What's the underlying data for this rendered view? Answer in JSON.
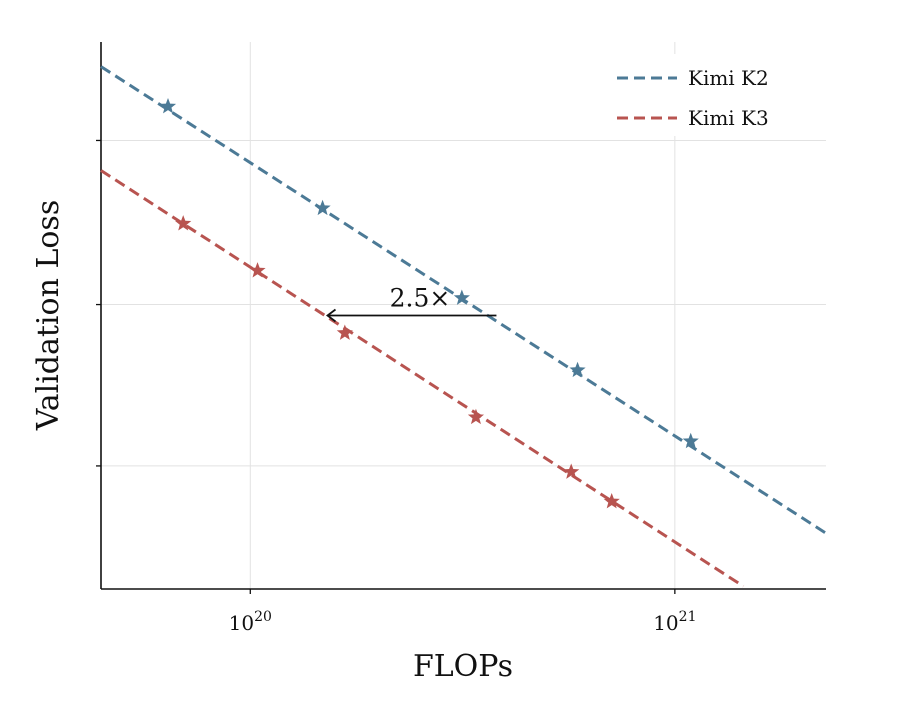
{
  "chart_data": {
    "type": "line",
    "title": "",
    "xlabel": "FLOPs",
    "ylabel": "Validation Loss",
    "x_scale": "log",
    "xlim": [
      4.45e+19,
      2.27e+21
    ],
    "ylim": [
      0,
      100
    ],
    "x_ticks": [
      {
        "value": 1e+20,
        "base": "10",
        "exp": "20"
      },
      {
        "value": 1e+21,
        "base": "10",
        "exp": "21"
      }
    ],
    "y_grid_values": [
      22.5,
      52.0,
      82.0
    ],
    "grid": true,
    "legend_position": "top-right",
    "series": [
      {
        "name": "Kimi K2",
        "color": "#4c7a96",
        "fit_line": {
          "x": [
            4.45e+19,
            2.27e+21
          ],
          "y": [
            95.5,
            10.2
          ]
        },
        "points": [
          {
            "x": 6.4e+19,
            "y": 88.2
          },
          {
            "x": 1.48e+20,
            "y": 69.6
          },
          {
            "x": 3.15e+20,
            "y": 53.2
          },
          {
            "x": 5.9e+20,
            "y": 40.0
          },
          {
            "x": 1.09e+21,
            "y": 27.0
          }
        ]
      },
      {
        "name": "Kimi K3",
        "color": "#b85450",
        "fit_line": {
          "x": [
            4.45e+19,
            1.45e+21
          ],
          "y": [
            76.5,
            0.5
          ]
        },
        "points": [
          {
            "x": 6.95e+19,
            "y": 66.8
          },
          {
            "x": 1.04e+20,
            "y": 58.2
          },
          {
            "x": 1.67e+20,
            "y": 46.8
          },
          {
            "x": 3.4e+20,
            "y": 31.4
          },
          {
            "x": 5.7e+20,
            "y": 21.4
          },
          {
            "x": 7.1e+20,
            "y": 16.0
          }
        ]
      }
    ],
    "annotation": {
      "text": "2.5×",
      "arrow_from": {
        "x": 3.8e+20,
        "y": 50.0
      },
      "arrow_to": {
        "x": 1.52e+20,
        "y": 50.0
      }
    }
  }
}
